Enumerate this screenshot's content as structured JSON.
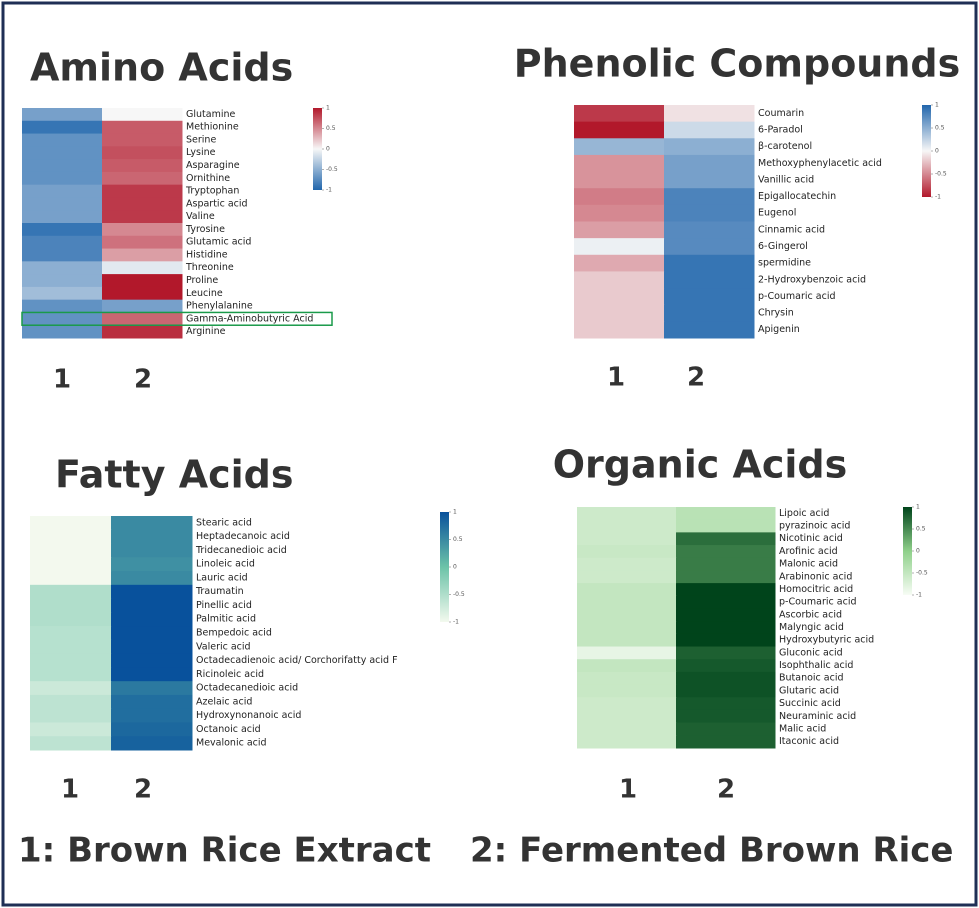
{
  "chart_data": [
    {
      "type": "heatmap",
      "title": "Amino Acids",
      "rows": [
        "Glutamine",
        "Methionine",
        "Serine",
        "Lysine",
        "Asparagine",
        "Ornithine",
        "Tryptophan",
        "Aspartic acid",
        "Valine",
        "Tyrosine",
        "Glutamic acid",
        "Histidine",
        "Threonine",
        "Proline",
        "Leucine",
        "Phenylalanine",
        "Gamma-Aminobutyric Acid",
        "Arginine"
      ],
      "columns": [
        "1",
        "2"
      ],
      "values": [
        [
          -0.6,
          0
        ],
        [
          -0.9,
          0.7
        ],
        [
          -0.7,
          0.7
        ],
        [
          -0.7,
          0.75
        ],
        [
          -0.7,
          0.7
        ],
        [
          -0.7,
          0.65
        ],
        [
          -0.6,
          0.85
        ],
        [
          -0.6,
          0.85
        ],
        [
          -0.6,
          0.85
        ],
        [
          -0.9,
          0.5
        ],
        [
          -0.8,
          0.6
        ],
        [
          -0.8,
          0.4
        ],
        [
          -0.5,
          -0.1
        ],
        [
          -0.5,
          1
        ],
        [
          -0.4,
          1
        ],
        [
          -0.7,
          -0.6
        ],
        [
          -0.7,
          0.65
        ],
        [
          -0.7,
          0.9
        ]
      ],
      "clim": [
        -1,
        1
      ],
      "cticks": [
        1,
        0.5,
        0,
        -0.5,
        -1
      ],
      "colors": [
        "#2166ac",
        "#f7f7f7",
        "#b2182b"
      ]
    },
    {
      "type": "heatmap",
      "title": "Phenolic Compounds",
      "rows": [
        "Coumarin",
        "6-Paradol",
        "β-carotenol",
        "Methoxyphenylacetic acid",
        "Vanillic acid",
        "Epigallocatechin",
        "Eugenol",
        "Cinnamic acid",
        "6-Gingerol",
        "spermidine",
        "2-Hydroxybenzoic acid",
        "p-Coumaric acid",
        "Chrysin",
        "Apigenin"
      ],
      "columns": [
        "1",
        "2"
      ],
      "values": [
        [
          -0.85,
          -0.1
        ],
        [
          -1,
          0.2
        ],
        [
          0.45,
          0.5
        ],
        [
          -0.45,
          0.6
        ],
        [
          -0.45,
          0.6
        ],
        [
          -0.55,
          0.8
        ],
        [
          -0.5,
          0.8
        ],
        [
          -0.4,
          0.75
        ],
        [
          0.05,
          0.75
        ],
        [
          -0.35,
          0.9
        ],
        [
          -0.2,
          0.9
        ],
        [
          -0.2,
          0.9
        ],
        [
          -0.2,
          0.9
        ],
        [
          -0.2,
          0.9
        ]
      ],
      "clim": [
        -1,
        1
      ],
      "cticks": [
        1,
        0.5,
        0,
        -0.5,
        -1
      ],
      "colors": [
        "#b2182b",
        "#f7f7f7",
        "#2166ac"
      ]
    },
    {
      "type": "heatmap",
      "title": "Fatty Acids",
      "rows": [
        "Stearic acid",
        "Heptadecanoic acid",
        "Tridecanedioic acid",
        "Linoleic acid",
        "Lauric acid",
        "Traumatin",
        "Pinellic acid",
        "Palmitic acid",
        "Bempedoic acid",
        "Valeric acid",
        "Octadecadienoic acid/ Corchorifatty acid F",
        "Ricinoleic acid",
        "Octadecanedioic acid",
        "Azelaic acid",
        "Hydroxynonanoic acid",
        "Octanoic acid",
        "Mevalonic acid"
      ],
      "columns": [
        "1",
        "2"
      ],
      "values": [
        [
          -1,
          0.5
        ],
        [
          -1,
          0.5
        ],
        [
          -1,
          0.5
        ],
        [
          -1,
          0.45
        ],
        [
          -1,
          0.5
        ],
        [
          -0.5,
          1
        ],
        [
          -0.5,
          1
        ],
        [
          -0.5,
          1
        ],
        [
          -0.55,
          1
        ],
        [
          -0.55,
          1
        ],
        [
          -0.55,
          1
        ],
        [
          -0.55,
          1
        ],
        [
          -0.7,
          0.65
        ],
        [
          -0.6,
          0.75
        ],
        [
          -0.6,
          0.75
        ],
        [
          -0.7,
          0.8
        ],
        [
          -0.6,
          0.85
        ]
      ],
      "clim": [
        -1,
        1
      ],
      "cticks": [
        1,
        0.5,
        0,
        -0.5,
        -1
      ],
      "colors": [
        "#f3f9ee",
        "#6cc3a8",
        "#08519c"
      ]
    },
    {
      "type": "heatmap",
      "title": "Organic Acids",
      "rows": [
        "Lipoic acid",
        "pyrazinoic acid",
        "Nicotinic acid",
        "Arofinic acid",
        "Malonic acid",
        "Arabinonic acid",
        "Homocitric acid",
        "p-Coumaric acid",
        "Ascorbic acid",
        "Malyngic acid",
        "Hydroxybutyric acid",
        "Gluconic acid",
        "Isophthalic acid",
        "Butanoic acid",
        "Glutaric acid",
        "Succinic acid",
        "Neuraminic acid",
        "Malic acid",
        "Itaconic acid"
      ],
      "columns": [
        "1",
        "2"
      ],
      "values": [
        [
          -0.6,
          -0.4
        ],
        [
          -0.6,
          -0.4
        ],
        [
          -0.6,
          0.7
        ],
        [
          -0.55,
          0.6
        ],
        [
          -0.6,
          0.6
        ],
        [
          -0.6,
          0.6
        ],
        [
          -0.5,
          1
        ],
        [
          -0.5,
          1
        ],
        [
          -0.5,
          1
        ],
        [
          -0.5,
          1
        ],
        [
          -0.5,
          1
        ],
        [
          -0.85,
          0.8
        ],
        [
          -0.5,
          0.85
        ],
        [
          -0.55,
          0.9
        ],
        [
          -0.55,
          0.9
        ],
        [
          -0.6,
          0.85
        ],
        [
          -0.6,
          0.85
        ],
        [
          -0.6,
          0.8
        ],
        [
          -0.6,
          0.8
        ]
      ],
      "clim": [
        -1,
        1
      ],
      "cticks": [
        1,
        0.5,
        0,
        -0.5,
        -1
      ],
      "colors": [
        "#f7fcf5",
        "#8fd08a",
        "#00441b"
      ]
    }
  ],
  "footer": [
    "1: Brown Rice Extract",
    "2: Fermented Brown Rice"
  ]
}
